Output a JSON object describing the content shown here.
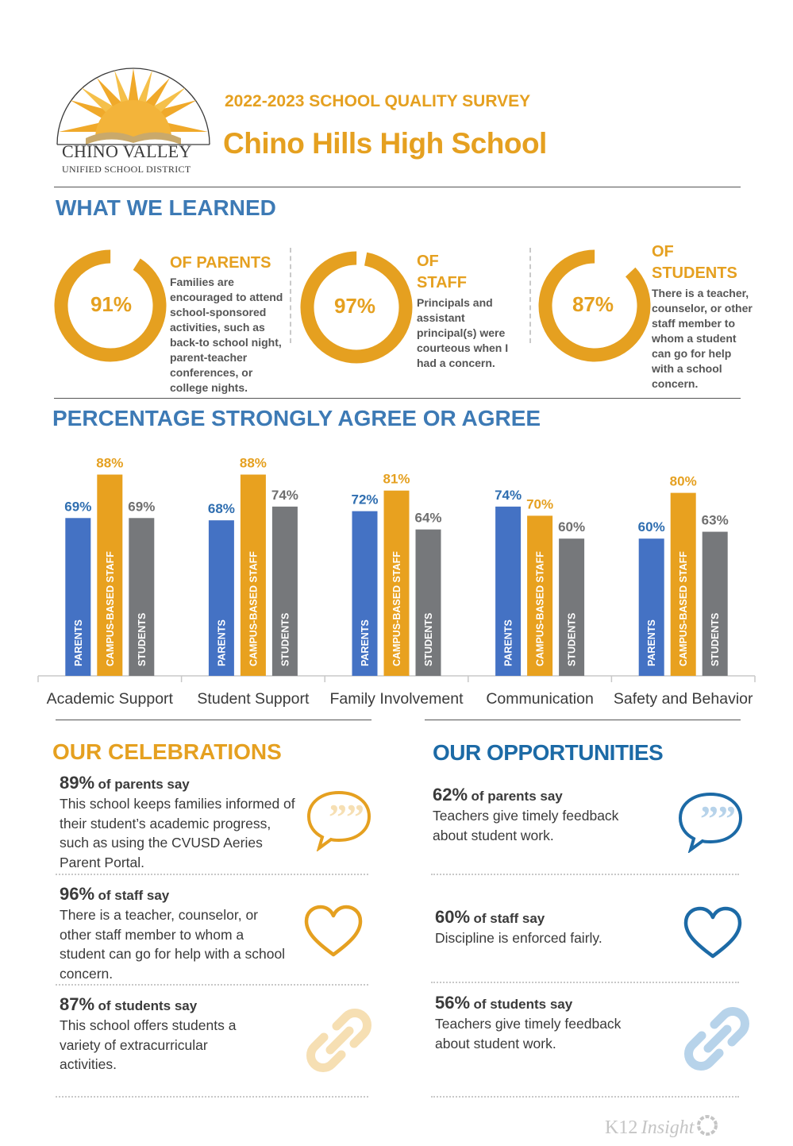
{
  "header": {
    "logo_line1": "CHINO VALLEY",
    "logo_line2": "UNIFIED SCHOOL DISTRICT",
    "survey_title": "2022-2023 SCHOOL QUALITY SURVEY",
    "school_name": "Chino Hills High School"
  },
  "learned": {
    "title": "WHAT WE LEARNED",
    "items": [
      {
        "percent": "91%",
        "value": 91,
        "heading": "OF  PARENTS",
        "text": "Families are encouraged to attend school-sponsored activities, such as back-to school night, parent-teacher conferences, or college nights."
      },
      {
        "percent": "97%",
        "value": 97,
        "heading": "OF STAFF",
        "text": "Principals and assistant principal(s) were courteous when I had a concern."
      },
      {
        "percent": "87%",
        "value": 87,
        "heading": "OF STUDENTS",
        "text": "There is a teacher, counselor, or other staff member to whom a student can go for help with a school concern."
      }
    ]
  },
  "chart_data": {
    "type": "bar",
    "title": "PERCENTAGE STRONGLY AGREE OR AGREE",
    "categories": [
      "Academic Support",
      "Student Support",
      "Family Involvement",
      "Communication",
      "Safety and Behavior"
    ],
    "series": [
      {
        "name": "PARENTS",
        "color": "#4472c4",
        "label_color": "#2f6eb0",
        "values": [
          69,
          68,
          72,
          74,
          60
        ]
      },
      {
        "name": "CAMPUS-BASED STAFF",
        "color": "#e8a11f",
        "label_color": "#e5a020",
        "values": [
          88,
          88,
          81,
          70,
          80
        ]
      },
      {
        "name": "STUDENTS",
        "color": "#76787b",
        "label_color": "#6f6f6f",
        "values": [
          69,
          74,
          64,
          60,
          63
        ]
      }
    ],
    "value_suffix": "%",
    "ylim": [
      0,
      100
    ],
    "grid": false,
    "legend": "labels inside bars"
  },
  "celebrations": {
    "title": "OUR CELEBRATIONS",
    "items": [
      {
        "pct": "89%",
        "who": "of parents say",
        "text": "This school keeps families informed of their student’s academic progress, such as using the CVUSD Aeries Parent Portal.",
        "icon": "quote-bubble-icon"
      },
      {
        "pct": "96%",
        "who": "of staff say",
        "text": "There is a teacher, counselor, or other staff member to whom a student can go for help with a school concern.",
        "icon": "heart-icon"
      },
      {
        "pct": "87%",
        "who": "of students say",
        "text": "This school offers students a variety of extracurricular activities.",
        "icon": "link-icon"
      }
    ]
  },
  "opportunities": {
    "title": "OUR OPPORTUNITIES",
    "items": [
      {
        "pct": "62%",
        "who": "of parents say",
        "text": "Teachers give timely feedback about student work.",
        "icon": "quote-bubble-icon"
      },
      {
        "pct": "60%",
        "who": "of staff say",
        "text": "Discipline is enforced fairly.",
        "icon": "heart-icon"
      },
      {
        "pct": "56%",
        "who": "of students say",
        "text": "Teachers give timely feedback about student work.",
        "icon": "link-icon"
      }
    ]
  },
  "colors": {
    "orange": "#e5a020",
    "blue": "#3d7ab5",
    "navy": "#1c6aa6",
    "light_orange": "#f6dfb3",
    "light_blue": "#b7d3ea"
  },
  "footer": {
    "brand_main": "K12",
    "brand_italic": "Insight"
  }
}
